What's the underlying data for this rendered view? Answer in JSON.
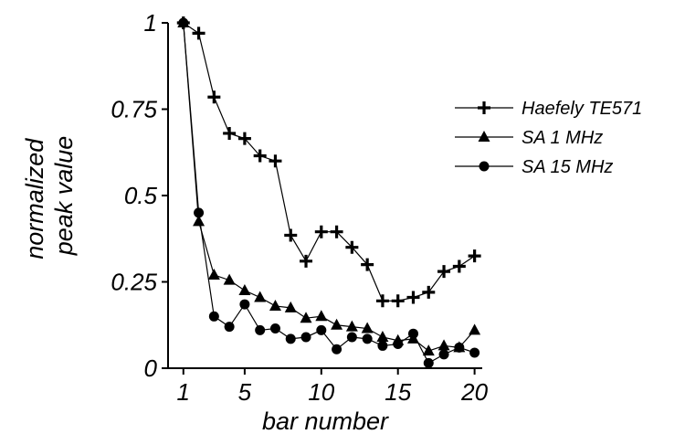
{
  "chart_data": {
    "type": "line",
    "title": "",
    "xlabel": "bar number",
    "ylabel_lines": [
      "normalized",
      "peak value"
    ],
    "xlim": [
      0,
      20.5
    ],
    "ylim": [
      0,
      1
    ],
    "xticks": [
      1,
      5,
      10,
      15,
      20
    ],
    "yticks": [
      {
        "value": 0,
        "label": "0"
      },
      {
        "value": 0.25,
        "label": "0.25"
      },
      {
        "value": 0.5,
        "label": "0.5"
      },
      {
        "value": 0.75,
        "label": "0.75"
      },
      {
        "value": 1,
        "label": "1"
      }
    ],
    "grid": false,
    "legend_position": "right",
    "x": [
      1,
      2,
      3,
      4,
      5,
      6,
      7,
      8,
      9,
      10,
      11,
      12,
      13,
      14,
      15,
      16,
      17,
      18,
      19,
      20
    ],
    "series": [
      {
        "name": "Haefely TE571",
        "marker": "plus",
        "values": [
          1.0,
          0.97,
          0.785,
          0.68,
          0.665,
          0.615,
          0.6,
          0.385,
          0.31,
          0.395,
          0.395,
          0.35,
          0.3,
          0.195,
          0.195,
          0.205,
          0.22,
          0.28,
          0.295,
          0.325
        ]
      },
      {
        "name": "SA 1 MHz",
        "marker": "triangle",
        "values": [
          1.0,
          0.425,
          0.27,
          0.255,
          0.225,
          0.205,
          0.18,
          0.175,
          0.145,
          0.15,
          0.125,
          0.12,
          0.115,
          0.09,
          0.08,
          0.085,
          0.05,
          0.065,
          0.06,
          0.11
        ]
      },
      {
        "name": "SA 15 MHz",
        "marker": "circle",
        "values": [
          1.0,
          0.45,
          0.15,
          0.12,
          0.185,
          0.11,
          0.115,
          0.085,
          0.09,
          0.11,
          0.055,
          0.09,
          0.085,
          0.065,
          0.07,
          0.1,
          0.015,
          0.04,
          0.06,
          0.045
        ]
      }
    ]
  }
}
